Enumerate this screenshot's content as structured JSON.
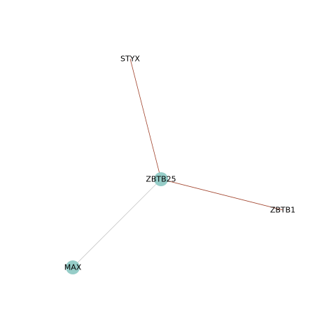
{
  "graph": {
    "nodes": [
      {
        "id": "ZBTB25",
        "label": "ZBTB25",
        "marker": true
      },
      {
        "id": "STYX",
        "label": "STYX",
        "marker": false
      },
      {
        "id": "ZBTB1",
        "label": "ZBTB1",
        "marker": false
      },
      {
        "id": "MAX",
        "label": "MAX",
        "marker": true
      }
    ],
    "edges": [
      {
        "source": "ZBTB25",
        "target": "STYX",
        "color": "#a0412a"
      },
      {
        "source": "ZBTB25",
        "target": "ZBTB1",
        "color": "#a0412a"
      },
      {
        "source": "ZBTB25",
        "target": "MAX",
        "color": "#c8c8c8"
      }
    ],
    "colors": {
      "node_fill": "#96cdc8",
      "label": "#000000"
    }
  }
}
